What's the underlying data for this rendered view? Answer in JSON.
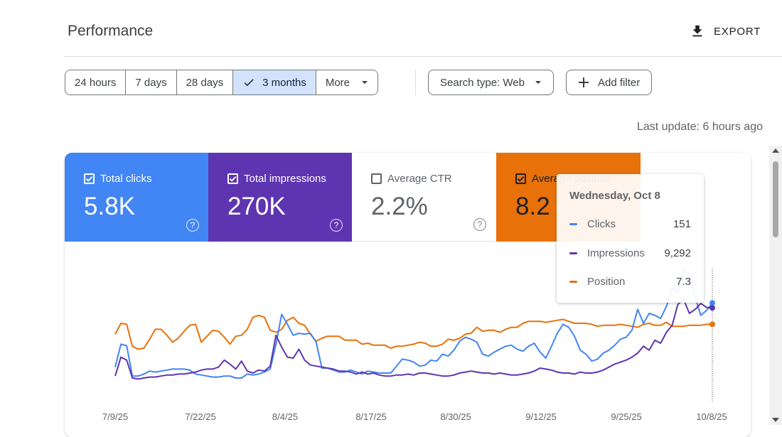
{
  "header": {
    "title": "Performance",
    "export_label": "EXPORT"
  },
  "date_range": {
    "options": [
      {
        "label": "24 hours",
        "selected": false
      },
      {
        "label": "7 days",
        "selected": false
      },
      {
        "label": "28 days",
        "selected": false
      },
      {
        "label": "3 months",
        "selected": true
      },
      {
        "label": "More",
        "selected": false
      }
    ]
  },
  "filters": {
    "search_type": "Search type: Web",
    "add_filter": "Add filter"
  },
  "last_update": "Last update: 6 hours ago",
  "metrics": {
    "clicks": {
      "label": "Total clicks",
      "value": "5.8K",
      "checked": true,
      "color": "#4285f4"
    },
    "impressions": {
      "label": "Total impressions",
      "value": "270K",
      "checked": true,
      "color": "#5e35b1"
    },
    "ctr": {
      "label": "Average CTR",
      "value": "2.2%",
      "checked": false
    },
    "position": {
      "label": "Average position",
      "value": "8.2",
      "checked": true,
      "color": "#e8710a"
    }
  },
  "tooltip": {
    "date": "Wednesday, Oct 8",
    "rows": [
      {
        "name": "Clicks",
        "value": "151",
        "color": "#4285f4"
      },
      {
        "name": "Impressions",
        "value": "9,292",
        "color": "#5e35b1"
      },
      {
        "name": "Position",
        "value": "7.3",
        "color": "#e8710a"
      }
    ]
  },
  "chart_data": {
    "type": "line",
    "x_ticks": [
      "7/9/25",
      "7/22/25",
      "8/4/25",
      "8/17/25",
      "8/30/25",
      "9/12/25",
      "9/25/25",
      "10/8/25"
    ],
    "series": [
      {
        "name": "Clicks",
        "color": "#4285f4",
        "values": [
          62,
          108,
          105,
          44,
          44,
          48,
          54,
          52,
          54,
          56,
          58,
          58,
          58,
          56,
          48,
          46,
          44,
          42,
          42,
          44,
          44,
          40,
          40,
          48,
          46,
          48,
          52,
          58,
          108,
          168,
          148,
          126,
          130,
          128,
          130,
          112,
          60,
          60,
          56,
          52,
          52,
          56,
          52,
          48,
          54,
          52,
          50,
          50,
          50,
          64,
          78,
          76,
          72,
          64,
          66,
          76,
          74,
          88,
          84,
          96,
          114,
          122,
          118,
          112,
          88,
          84,
          92,
          98,
          104,
          106,
          98,
          94,
          104,
          110,
          92,
          80,
          104,
          130,
          148,
          142,
          124,
          96,
          88,
          74,
          78,
          90,
          96,
          106,
          118,
          122,
          136,
          178,
          150,
          170,
          166,
          160,
          184,
          220,
          212,
          262,
          244,
          202,
          166,
          176,
          191
        ]
      },
      {
        "name": "Impressions",
        "color": "#5e35b1",
        "values": [
          44,
          82,
          76,
          40,
          38,
          40,
          42,
          42,
          44,
          46,
          46,
          48,
          48,
          50,
          52,
          56,
          58,
          58,
          62,
          76,
          68,
          58,
          74,
          54,
          50,
          56,
          54,
          64,
          126,
          102,
          82,
          80,
          98,
          76,
          66,
          64,
          62,
          60,
          58,
          54,
          54,
          52,
          48,
          52,
          48,
          50,
          46,
          44,
          44,
          46,
          46,
          48,
          46,
          50,
          50,
          48,
          46,
          44,
          44,
          46,
          50,
          52,
          54,
          52,
          50,
          50,
          48,
          50,
          48,
          46,
          46,
          48,
          50,
          54,
          60,
          58,
          56,
          52,
          50,
          50,
          48,
          52,
          50,
          50,
          52,
          56,
          62,
          68,
          72,
          76,
          82,
          90,
          104,
          96,
          116,
          110,
          132,
          146,
          188,
          198,
          170,
          178,
          190,
          182,
          181
        ]
      },
      {
        "name": "Position",
        "color": "#e8710a",
        "values": [
          128,
          150,
          148,
          104,
          98,
          100,
          118,
          138,
          138,
          126,
          112,
          120,
          134,
          146,
          148,
          112,
          124,
          136,
          134,
          122,
          108,
          124,
          126,
          138,
          162,
          166,
          162,
          136,
          132,
          138,
          156,
          162,
          150,
          146,
          128,
          114,
          120,
          124,
          124,
          124,
          116,
          116,
          116,
          108,
          110,
          106,
          106,
          106,
          100,
          104,
          104,
          106,
          108,
          112,
          110,
          104,
          104,
          108,
          118,
          116,
          120,
          128,
          130,
          142,
          134,
          136,
          136,
          132,
          138,
          142,
          142,
          150,
          154,
          154,
          154,
          152,
          154,
          156,
          158,
          154,
          150,
          150,
          150,
          148,
          144,
          146,
          146,
          146,
          148,
          146,
          144,
          142,
          148,
          150,
          146,
          146,
          152,
          144,
          144,
          144,
          146,
          146,
          146,
          148,
          148
        ]
      }
    ],
    "legend": "top"
  }
}
